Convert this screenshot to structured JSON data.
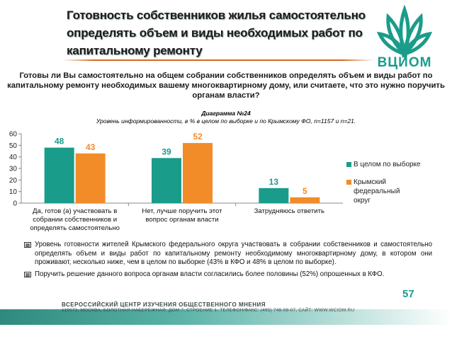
{
  "header": {
    "title_lines": [
      "Готовность собственников жилья самостоятельно",
      "определять объем и виды необходимых работ по",
      "капитальному ремонту"
    ],
    "logo_text": "ВЦИОМ"
  },
  "question": "Готовы ли Вы самостоятельно на общем собрании собственников определять объем и виды работ по капитальному ремонту необходимых вашему многоквартирному дому, или считаете, что это нужно поручить органам власти?",
  "diagram": {
    "number": "Диаграмма №24",
    "subtitle": "Уровень информированности, в % в целом по выборке и по Крымскому ФО, n=1157 и n=21."
  },
  "chart_data": {
    "type": "bar",
    "categories": [
      "Да, готов (а) участвовать в собрании собственников и определять самостоятельно",
      "Нет, лучше поручить этот вопрос органам власти",
      "Затрудняюсь ответить"
    ],
    "category_lines": [
      [
        "Да, готов (а) участвовать в",
        "собрании собственников и",
        "определять самостоятельно"
      ],
      [
        "Нет, лучше поручить этот",
        "вопрос органам власти"
      ],
      [
        "Затрудняюсь ответить"
      ]
    ],
    "series": [
      {
        "name": "В целом по выборке",
        "values": [
          48,
          39,
          13
        ],
        "color": "#1a9c8a"
      },
      {
        "name": "Крымский федеральный округ",
        "values": [
          43,
          52,
          5
        ],
        "color": "#f28c28"
      }
    ],
    "ylim": [
      0,
      60
    ],
    "yticks": [
      0,
      10,
      20,
      30,
      40,
      50,
      60
    ],
    "legend_position": "right",
    "grid": false
  },
  "legend": {
    "items": [
      {
        "label": "В целом по выборке",
        "color": "#1a9c8a"
      },
      {
        "label": "Крымский федеральный округ",
        "color": "#f28c28"
      }
    ]
  },
  "bullets": [
    "Уровень готовности жителей Крымского федерального округа участвовать в собрании собственников и самостоятельно определять объем и виды работ по капитальному ремонту необходимому многоквартирному дому, в котором они проживают, несколько ниже, чем в целом по выборке (43% в КФО и 48% в целом по выборке).",
    "Поручить решение данного вопроса органам власти согласились более половины (52%) опрошенных в КФО."
  ],
  "page_number": "57",
  "footer": {
    "org": "ВСЕРОССИЙСКИЙ ЦЕНТР ИЗУЧЕНИЯ ОБЩЕСТВЕННОГО МНЕНИЯ",
    "address": "119072, МОСКВА, БОЛОТНАЯ НАБЕРЕЖНАЯ, ДОМ 7, СТРОЕНИЕ 1, ТЕЛЕФОН/ФАКС: (495) 748-08-07, САЙТ: WWW.WCIOM.RU"
  }
}
